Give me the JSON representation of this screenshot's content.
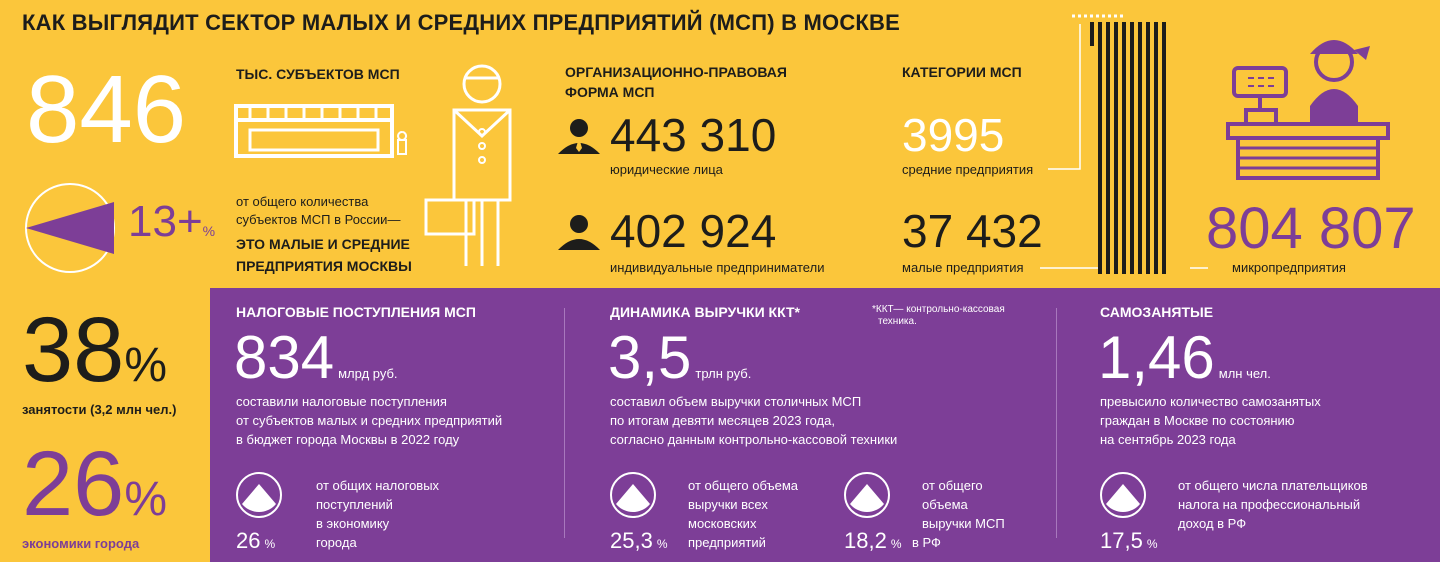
{
  "title": "КАК ВЫГЛЯДИТ СЕКТОР МАЛЫХ И СРЕДНИХ ПРЕДПРИЯТИЙ (МСП) В МОСКВЕ",
  "subjects": {
    "value": "846",
    "label": "ТЫС. СУБЪЕКТОВ МСП",
    "share_value": "13+",
    "share_unit": "%",
    "share_fraction": 0.13,
    "share_text_1": "от общего количества",
    "share_text_2": "субъектов МСП в России—",
    "share_bold_1": "ЭТО МАЛЫЕ И СРЕДНИЕ",
    "share_bold_2": "ПРЕДПРИЯТИЯ МОСКВЫ"
  },
  "legal_form": {
    "head_1": "ОРГАНИЗАЦИОННО-ПРАВОВАЯ",
    "head_2": "ФОРМА МСП",
    "legal_value": "443 310",
    "legal_label": "юридические лица",
    "ip_value": "402 924",
    "ip_label": "индивидуальные предприниматели"
  },
  "categories": {
    "head": "КАТЕГОРИИ МСП",
    "medium_value": "3995",
    "medium_label": "средние предприятия",
    "small_value": "37 432",
    "small_label": "малые предприятия",
    "micro_value": "804 807",
    "micro_label": "микропредприятия"
  },
  "employment": {
    "value": "38",
    "unit": "%",
    "label": "занятости (3,2 млн чел.)",
    "econ_value": "26",
    "econ_unit": "%",
    "econ_label": "экономики города"
  },
  "tax": {
    "head": "НАЛОГОВЫЕ ПОСТУПЛЕНИЯ МСП",
    "value": "834",
    "unit": "млрд руб.",
    "text_1": "составили налоговые поступления",
    "text_2": "от субъектов малых и средних предприятий",
    "text_3": "в бюджет города Москвы в 2022 году",
    "pct": "26",
    "pct_unit": "%",
    "pct_text_1": "от общих налоговых",
    "pct_text_2": "поступлений",
    "pct_text_3": "в экономику",
    "pct_text_4": "города"
  },
  "revenue": {
    "head": "ДИНАМИКА ВЫРУЧКИ ККТ*",
    "note_1": "*ККТ— контрольно-кассовая",
    "note_2": "техника.",
    "value": "3,5",
    "unit": "трлн руб.",
    "text_1": "составил объем выручки столичных МСП",
    "text_2": "по итогам девяти месяцев 2023 года,",
    "text_3": "согласно данным контрольно-кассовой техники",
    "pct1": "25,3",
    "pct1_unit": "%",
    "pct1_text_1": "от общего объема",
    "pct1_text_2": "выручки всех",
    "pct1_text_3": "московских",
    "pct1_text_4": "предприятий",
    "pct2": "18,2",
    "pct2_unit": "%",
    "pct2_text_1": "от общего",
    "pct2_text_2": "объема",
    "pct2_text_3": "выручки МСП",
    "pct2_text_4": "в РФ"
  },
  "selfemployed": {
    "head": "САМОЗАНЯТЫЕ",
    "value": "1,46",
    "unit": "млн чел.",
    "text_1": "превысило количество самозанятых",
    "text_2": "граждан в Москве по состоянию",
    "text_3": "на сентябрь 2023 года",
    "pct": "17,5",
    "pct_unit": "%",
    "pct_text_1": "от общего числа плательщиков",
    "pct_text_2": "налога на профессиональный",
    "pct_text_3": "доход в РФ"
  },
  "colors": {
    "background": "#fbc63b",
    "accent": "#7d3e97",
    "text": "#1d1d1b",
    "white": "#ffffff"
  }
}
